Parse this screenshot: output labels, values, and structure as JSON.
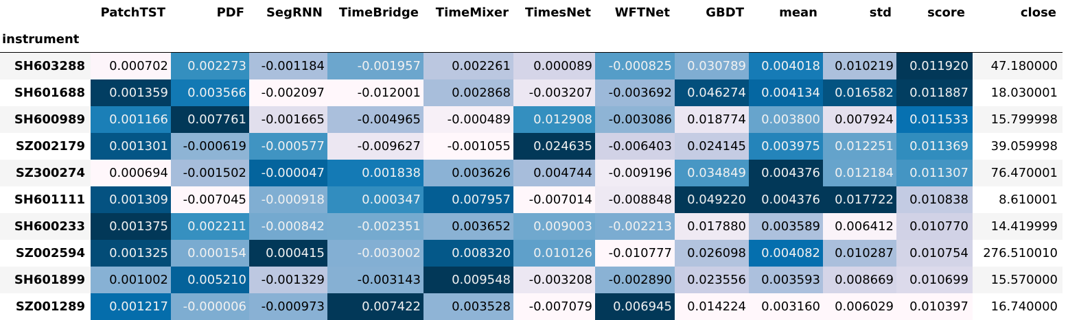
{
  "index_name": "instrument",
  "columns": [
    "PatchTST",
    "PDF",
    "SegRNN",
    "TimeBridge",
    "TimeMixer",
    "TimesNet",
    "WFTNet",
    "GBDT",
    "mean",
    "std",
    "score",
    "close"
  ],
  "rows": [
    "SH603288",
    "SH601688",
    "SH600989",
    "SZ002179",
    "SZ300274",
    "SH601111",
    "SH600233",
    "SZ002594",
    "SH601899",
    "SZ001289"
  ],
  "cells": [
    [
      "0.000702",
      "0.002273",
      "-0.001184",
      "-0.001957",
      "0.002261",
      "0.000089",
      "-0.000825",
      "0.030789",
      "0.004018",
      "0.010219",
      "0.011920",
      "47.180000"
    ],
    [
      "0.001359",
      "0.003566",
      "-0.002097",
      "-0.012001",
      "0.002868",
      "-0.003207",
      "-0.003692",
      "0.046274",
      "0.004134",
      "0.016582",
      "0.011887",
      "18.030001"
    ],
    [
      "0.001166",
      "0.007761",
      "-0.001665",
      "-0.004965",
      "-0.000489",
      "0.012908",
      "-0.003086",
      "0.018774",
      "0.003800",
      "0.007924",
      "0.011533",
      "15.799998"
    ],
    [
      "0.001301",
      "-0.000619",
      "-0.000577",
      "-0.009627",
      "-0.001055",
      "0.024635",
      "-0.006403",
      "0.024145",
      "0.003975",
      "0.012251",
      "0.011369",
      "39.059998"
    ],
    [
      "0.000694",
      "-0.001502",
      "-0.000047",
      "0.001838",
      "0.003626",
      "0.004744",
      "-0.009196",
      "0.034849",
      "0.004376",
      "0.012184",
      "0.011307",
      "76.470001"
    ],
    [
      "0.001309",
      "-0.007045",
      "-0.000918",
      "0.000347",
      "0.007957",
      "-0.007014",
      "-0.008848",
      "0.049220",
      "0.004376",
      "0.017722",
      "0.010838",
      "8.610001"
    ],
    [
      "0.001375",
      "0.002211",
      "-0.000842",
      "-0.002351",
      "0.003652",
      "0.009003",
      "-0.002213",
      "0.017880",
      "0.003589",
      "0.006412",
      "0.010770",
      "14.419999"
    ],
    [
      "0.001325",
      "0.000154",
      "0.000415",
      "-0.003002",
      "0.008320",
      "0.010126",
      "-0.010777",
      "0.026098",
      "0.004082",
      "0.010287",
      "0.010754",
      "276.510010"
    ],
    [
      "0.001002",
      "0.005210",
      "-0.001329",
      "-0.003143",
      "0.009548",
      "-0.003208",
      "-0.002890",
      "0.023556",
      "0.003593",
      "0.008669",
      "0.010699",
      "15.570000"
    ],
    [
      "0.001217",
      "-0.000006",
      "-0.000973",
      "0.007422",
      "0.003528",
      "-0.007079",
      "0.006945",
      "0.014224",
      "0.003160",
      "0.006029",
      "0.010397",
      "16.740000"
    ]
  ],
  "colors": {
    "stripe": "#f5f5f5",
    "rule": "#000000",
    "colormap": [
      "#fff7fb",
      "#ece7f2",
      "#d0d1e6",
      "#a6bddb",
      "#74a9cf",
      "#3690c0",
      "#0570b0",
      "#045a8d",
      "#023858"
    ]
  },
  "chart_data": {
    "type": "table",
    "index_name": "instrument",
    "columns": [
      "PatchTST",
      "PDF",
      "SegRNN",
      "TimeBridge",
      "TimeMixer",
      "TimesNet",
      "WFTNet",
      "GBDT",
      "mean",
      "std",
      "score",
      "close"
    ],
    "rows": [
      "SH603288",
      "SH601688",
      "SH600989",
      "SZ002179",
      "SZ300274",
      "SH601111",
      "SH600233",
      "SZ002594",
      "SH601899",
      "SZ001289"
    ],
    "background_gradient": "PuBu",
    "gradient_columns": [
      "PatchTST",
      "PDF",
      "SegRNN",
      "TimeBridge",
      "TimeMixer",
      "TimesNet",
      "WFTNet",
      "GBDT",
      "mean",
      "std",
      "score"
    ]
  }
}
